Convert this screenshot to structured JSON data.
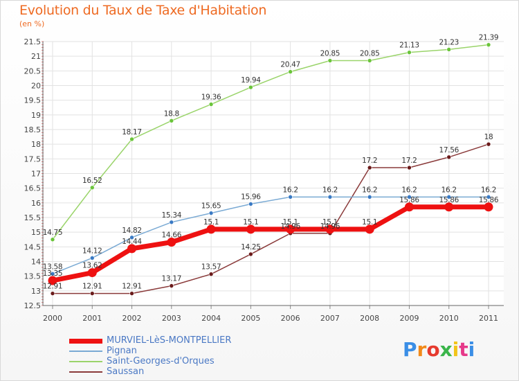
{
  "title": "Evolution du Taux de Taxe d'Habitation",
  "unit_label": "(en %)",
  "brand": {
    "text": "Proxiti",
    "letter_colors": [
      "#3a8ee6",
      "#f28a1a",
      "#e63a2e",
      "#3ab54a",
      "#f2c41a",
      "#e63a8a",
      "#3a8ee6"
    ]
  },
  "chart_data": {
    "type": "line",
    "x": [
      "2000",
      "2001",
      "2002",
      "2003",
      "2004",
      "2005",
      "2006",
      "2007",
      "2008",
      "2009",
      "2010",
      "2011"
    ],
    "ylim": [
      12.5,
      21.5
    ],
    "yticks": [
      "12.5",
      "13",
      "13.5",
      "14",
      "14.5",
      "15",
      "15.5",
      "16",
      "16.5",
      "17",
      "17.5",
      "18",
      "18.5",
      "19",
      "19.5",
      "20",
      "20.5",
      "21",
      "21.5"
    ],
    "grid": true,
    "legend_position": "bottom-left",
    "series": [
      {
        "name": "MURVIEL-LèS-MONTPELLIER",
        "color": "#ee1111",
        "marker": "#ee1111",
        "width": 7,
        "values": [
          13.35,
          13.62,
          14.44,
          14.66,
          15.1,
          15.1,
          15.1,
          15.1,
          15.1,
          15.86,
          15.86,
          15.86
        ],
        "labels": [
          "13.35",
          "13.62",
          "14.44",
          "14.66",
          "15.1",
          "15.1",
          "15.1",
          "15.1",
          "15.1",
          "15.86",
          "15.86",
          "15.86"
        ]
      },
      {
        "name": "Pignan",
        "color": "#7aaad4",
        "marker": "#3a7ac4",
        "width": 1.5,
        "values": [
          13.58,
          14.12,
          14.82,
          15.34,
          15.65,
          15.96,
          16.2,
          16.2,
          16.2,
          16.2,
          16.2,
          16.2
        ],
        "labels": [
          "13.58",
          "14.12",
          "14.82",
          "15.34",
          "15.65",
          "15.96",
          "16.2",
          "16.2",
          "16.2",
          "16.2",
          "16.2",
          "16.2"
        ]
      },
      {
        "name": "Saint-Georges-d'Orques",
        "color": "#9ad46a",
        "marker": "#6ac43a",
        "width": 1.5,
        "values": [
          14.75,
          16.52,
          18.17,
          18.8,
          19.36,
          19.94,
          20.47,
          20.85,
          20.85,
          21.13,
          21.23,
          21.39
        ],
        "labels": [
          "14.75",
          "16.52",
          "18.17",
          "18.8",
          "19.36",
          "19.94",
          "20.47",
          "20.85",
          "20.85",
          "21.13",
          "21.23",
          "21.39"
        ]
      },
      {
        "name": "Saussan",
        "color": "#8a3a3a",
        "marker": "#6a1a1a",
        "width": 1.5,
        "values": [
          12.91,
          12.91,
          12.91,
          13.17,
          13.57,
          14.25,
          14.96,
          14.96,
          17.2,
          17.2,
          17.56,
          18
        ],
        "labels": [
          "12.91",
          "12.91",
          "12.91",
          "13.17",
          "13.57",
          "14.25",
          "14.96",
          "14.96",
          "17.2",
          "17.2",
          "17.56",
          "18"
        ]
      }
    ]
  }
}
